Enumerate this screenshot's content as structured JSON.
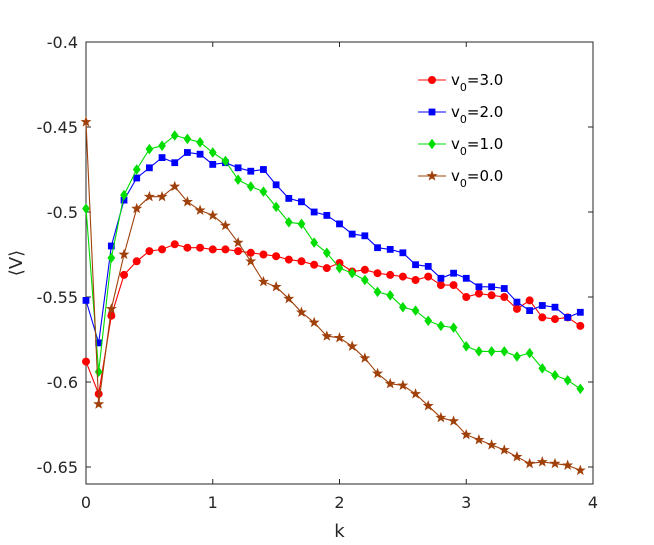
{
  "chart_data": {
    "type": "line",
    "title": "",
    "xlabel": "k",
    "ylabel": "⟨V⟩",
    "xlim": [
      0,
      4
    ],
    "ylim": [
      -0.66,
      -0.4
    ],
    "xticks": [
      0,
      1,
      2,
      3,
      4
    ],
    "xtick_labels": [
      "0",
      "1",
      "2",
      "3",
      "4"
    ],
    "yticks": [
      -0.65,
      -0.6,
      -0.55,
      -0.5,
      -0.45,
      -0.4
    ],
    "ytick_labels": [
      "-0.65",
      "-0.6",
      "-0.55",
      "-0.5",
      "-0.45",
      "-0.4"
    ],
    "grid": false,
    "legend_position": "top-right",
    "x": [
      0.0,
      0.1,
      0.2,
      0.3,
      0.4,
      0.5,
      0.6,
      0.7,
      0.8,
      0.9,
      1.0,
      1.1,
      1.2,
      1.3,
      1.4,
      1.5,
      1.6,
      1.7,
      1.8,
      1.9,
      2.0,
      2.1,
      2.2,
      2.3,
      2.4,
      2.5,
      2.6,
      2.7,
      2.8,
      2.9,
      3.0,
      3.1,
      3.2,
      3.3,
      3.4,
      3.5,
      3.6,
      3.7,
      3.8,
      3.9
    ],
    "series": [
      {
        "name": "v0=3.0",
        "legend_main": "v",
        "legend_sub": "0",
        "legend_value": "=3.0",
        "color": "#ff0000",
        "marker": "circle",
        "values": [
          -0.588,
          -0.607,
          -0.561,
          -0.537,
          -0.529,
          -0.523,
          -0.522,
          -0.519,
          -0.521,
          -0.521,
          -0.522,
          -0.522,
          -0.523,
          -0.524,
          -0.525,
          -0.526,
          -0.528,
          -0.529,
          -0.531,
          -0.533,
          -0.53,
          -0.535,
          -0.534,
          -0.536,
          -0.537,
          -0.538,
          -0.54,
          -0.538,
          -0.543,
          -0.543,
          -0.55,
          -0.548,
          -0.549,
          -0.55,
          -0.557,
          -0.552,
          -0.562,
          -0.563,
          -0.562,
          -0.567
        ]
      },
      {
        "name": "v0=2.0",
        "legend_main": "v",
        "legend_sub": "0",
        "legend_value": "=2.0",
        "color": "#0000ff",
        "marker": "square",
        "values": [
          -0.552,
          -0.577,
          -0.52,
          -0.493,
          -0.48,
          -0.474,
          -0.468,
          -0.471,
          -0.465,
          -0.466,
          -0.472,
          -0.471,
          -0.474,
          -0.476,
          -0.475,
          -0.484,
          -0.492,
          -0.494,
          -0.5,
          -0.502,
          -0.507,
          -0.513,
          -0.514,
          -0.521,
          -0.522,
          -0.524,
          -0.531,
          -0.532,
          -0.539,
          -0.536,
          -0.539,
          -0.544,
          -0.544,
          -0.545,
          -0.553,
          -0.558,
          -0.555,
          -0.556,
          -0.562,
          -0.559
        ]
      },
      {
        "name": "v0=1.0",
        "legend_main": "v",
        "legend_sub": "0",
        "legend_value": "=1.0",
        "color": "#00dd00",
        "marker": "diamond",
        "values": [
          -0.498,
          -0.594,
          -0.527,
          -0.49,
          -0.475,
          -0.463,
          -0.461,
          -0.455,
          -0.457,
          -0.459,
          -0.465,
          -0.47,
          -0.481,
          -0.485,
          -0.488,
          -0.497,
          -0.506,
          -0.507,
          -0.518,
          -0.524,
          -0.533,
          -0.536,
          -0.54,
          -0.547,
          -0.549,
          -0.556,
          -0.558,
          -0.564,
          -0.567,
          -0.568,
          -0.579,
          -0.582,
          -0.582,
          -0.582,
          -0.585,
          -0.583,
          -0.592,
          -0.596,
          -0.599,
          -0.604
        ]
      },
      {
        "name": "v0=0.0",
        "legend_main": "v",
        "legend_sub": "0",
        "legend_value": "=0.0",
        "color": "#a0400a",
        "marker": "star",
        "values": [
          -0.447,
          -0.613,
          -0.557,
          -0.525,
          -0.498,
          -0.491,
          -0.491,
          -0.485,
          -0.494,
          -0.499,
          -0.502,
          -0.508,
          -0.518,
          -0.529,
          -0.541,
          -0.544,
          -0.551,
          -0.559,
          -0.565,
          -0.573,
          -0.574,
          -0.579,
          -0.586,
          -0.595,
          -0.601,
          -0.602,
          -0.607,
          -0.614,
          -0.621,
          -0.623,
          -0.631,
          -0.634,
          -0.637,
          -0.64,
          -0.644,
          -0.648,
          -0.647,
          -0.648,
          -0.649,
          -0.652
        ]
      }
    ]
  }
}
